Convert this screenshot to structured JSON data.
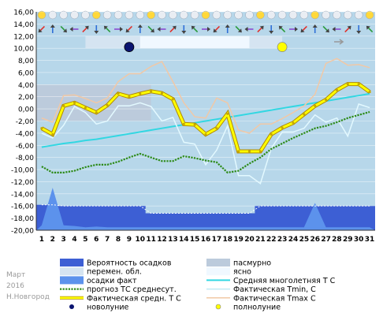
{
  "side": {
    "month": "Март",
    "year": "2016",
    "city": "Н.Новгород"
  },
  "colors": {
    "plot_bg": "#b7d7ea",
    "overcast": "#bccbdc",
    "partly": "#d5e4f1",
    "clear": "#f0f8ff",
    "prob_precip": "#3d5fd4",
    "precip_fact": "#5c92ec",
    "norm": "#32d7e2",
    "forecast": "#2c8a16",
    "fact_avg": "#ffff00",
    "fact_avg_edge": "#b08a00",
    "tmin": "#e3f9ff",
    "tmax": "#f1c8a6"
  },
  "legend": [
    {
      "key": "prob",
      "label": "Вероятность осадков"
    },
    {
      "key": "overcast",
      "label": "пасмурно"
    },
    {
      "key": "partly",
      "label": "перемен. обл."
    },
    {
      "key": "clear",
      "label": "ясно"
    },
    {
      "key": "precip",
      "label": "осадки факт"
    },
    {
      "key": "norm",
      "label": "Средняя многолетняя Т С"
    },
    {
      "key": "forecast",
      "label": "прогноз ТС среднесут."
    },
    {
      "key": "tmin",
      "label": "Фактическая Tmin, С"
    },
    {
      "key": "fact",
      "label": "Фактическая средн. Т С"
    },
    {
      "key": "tmax",
      "label": "Фактическая Tmax С"
    },
    {
      "key": "newmoon",
      "label": "новолуние"
    },
    {
      "key": "fullmoon",
      "label": "полнолуние"
    }
  ],
  "chart_data": {
    "type": "line",
    "x": [
      1,
      2,
      3,
      4,
      5,
      6,
      7,
      8,
      9,
      10,
      11,
      12,
      13,
      14,
      15,
      16,
      17,
      18,
      19,
      20,
      21,
      22,
      23,
      24,
      25,
      26,
      27,
      28,
      29,
      30,
      31
    ],
    "ylim": [
      -20,
      16
    ],
    "yticks": [
      "16,00",
      "14,00",
      "12,00",
      "10,00",
      "8,00",
      "6,00",
      "4,00",
      "2,00",
      "0,00",
      "-2,00",
      "-4,00",
      "-6,00",
      "-8,00",
      "-10,00",
      "-12,00",
      "-14,00",
      "-16,00",
      "-18,00",
      "-20,00"
    ],
    "series": [
      {
        "name": "Средняя многолетняя Т С",
        "key": "norm",
        "values": [
          -6.3,
          -6.0,
          -5.7,
          -5.5,
          -5.2,
          -5.0,
          -4.7,
          -4.4,
          -4.1,
          -3.8,
          -3.5,
          -3.2,
          -2.9,
          -2.6,
          -2.3,
          -2.0,
          -1.7,
          -1.4,
          -1.1,
          -0.8,
          -0.5,
          -0.2,
          0.1,
          0.4,
          0.7,
          1.0,
          1.3,
          1.6,
          1.9,
          2.2,
          2.5
        ]
      },
      {
        "name": "Фактическая Tmax С",
        "key": "tmax",
        "values": [
          -1.5,
          -2.2,
          2.2,
          2.3,
          1.7,
          1.0,
          1.8,
          4.5,
          5.8,
          5.8,
          7.0,
          7.8,
          4.5,
          1.0,
          -1.3,
          -1.5,
          1.8,
          1.0,
          -3.5,
          -4.0,
          -2.5,
          -2.5,
          -1.6,
          -0.6,
          0.5,
          2.4,
          7.5,
          8.3,
          7.2,
          7.3,
          6.8
        ]
      },
      {
        "name": "Фактическая Tmin, С",
        "key": "tmin",
        "values": [
          -4.0,
          -4.8,
          -2.7,
          0.4,
          -0.6,
          -2.5,
          -2.0,
          0.5,
          0.5,
          1.0,
          0.4,
          -2.0,
          -1.4,
          -5.5,
          -5.8,
          -9.2,
          -6.8,
          -2.8,
          -11.0,
          -11.0,
          -12.3,
          -6.5,
          -3.8,
          -3.8,
          -3.2,
          -1.0,
          -2.2,
          -1.5,
          -4.5,
          0.8,
          0.2
        ]
      },
      {
        "name": "Фактическая средн. Т С",
        "key": "fact",
        "values": [
          -3.2,
          -4.2,
          0.5,
          1.0,
          0.2,
          -0.6,
          0.6,
          2.5,
          2.0,
          2.5,
          2.9,
          2.6,
          1.6,
          -2.5,
          -2.6,
          -4.2,
          -3.2,
          -0.8,
          -7.0,
          -7.0,
          -7.0,
          -4.2,
          -3.1,
          -2.3,
          -0.9,
          0.5,
          1.5,
          3.1,
          4.1,
          4.1,
          2.8
        ]
      },
      {
        "name": "прогноз ТС среднесут.",
        "key": "forecast",
        "values": [
          -9.5,
          -10.5,
          -10.5,
          -10.2,
          -9.6,
          -9.2,
          -9.2,
          -8.7,
          -8.0,
          -7.4,
          -8.0,
          -8.6,
          -8.6,
          -7.8,
          -8.1,
          -8.5,
          -8.8,
          -10.5,
          -10.2,
          -9.0,
          -8.0,
          -6.6,
          -5.7,
          -4.8,
          -4.0,
          -3.2,
          -2.8,
          -2.2,
          -1.5,
          -1.0,
          -0.5
        ]
      },
      {
        "name": "осадки факт",
        "key": "precip",
        "values": [
          -19.2,
          -13.0,
          -19.2,
          -19.3,
          -19.5,
          -19.4,
          -19.5,
          -19.5,
          -19.5,
          -19.5,
          -19.5,
          -19.5,
          -19.5,
          -19.5,
          -19.5,
          -19.5,
          -19.5,
          -19.5,
          -19.5,
          -19.5,
          -19.5,
          -19.5,
          -19.5,
          -19.5,
          -19.5,
          -15.5,
          -19.5,
          -19.5,
          -19.5,
          -19.5,
          -19.5
        ]
      },
      {
        "name": "Вероятность осадков",
        "key": "prob",
        "values": [
          -15.8,
          -15.8,
          -16.0,
          -16.0,
          -16.0,
          -16.0,
          -16.0,
          -16.0,
          -16.0,
          -16.0,
          -17.2,
          -17.2,
          -17.2,
          -17.2,
          -17.2,
          -17.2,
          -17.2,
          -17.2,
          -17.2,
          -17.2,
          -16.0,
          -16.0,
          -16.0,
          -16.0,
          -16.0,
          -16.0,
          -16.0,
          -16.0,
          -16.0,
          -16.0,
          -16.0
        ]
      }
    ],
    "fact_last_day": 31,
    "precip_baseline": -18.0,
    "moon": [
      {
        "phase": "новолуние",
        "day": 9,
        "value": 10.2
      },
      {
        "phase": "полнолуние",
        "day": 23,
        "value": 10.2
      }
    ]
  }
}
